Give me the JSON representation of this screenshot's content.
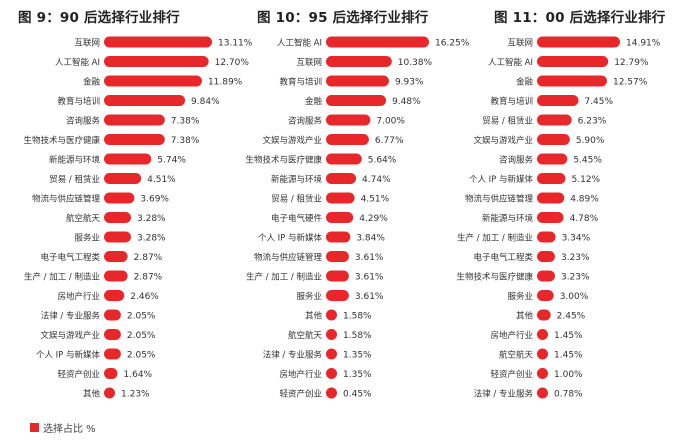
{
  "theme": {
    "bar_color": "#e8272b",
    "title_color": "#222222",
    "text_color": "#333333"
  },
  "legend": {
    "label": "选择占比 %"
  },
  "chart_data": [
    {
      "type": "bar",
      "orientation": "horizontal",
      "title": "图 9：90 后选择行业排行",
      "categories": [
        "互联网",
        "人工智能 AI",
        "金融",
        "教育与培训",
        "咨询服务",
        "生物技术与医疗健康",
        "新能源与环境",
        "贸易 / 租赁业",
        "物流与供应链管理",
        "航空航天",
        "服务业",
        "电子电气工程类",
        "生产 / 加工 / 制造业",
        "房地产行业",
        "法律 / 专业服务",
        "文娱与游戏产业",
        "个人 IP 与新媒体",
        "轻资产创业",
        "其他"
      ],
      "values": [
        13.11,
        12.7,
        11.89,
        9.84,
        7.38,
        7.38,
        5.74,
        4.51,
        3.69,
        3.28,
        3.28,
        2.87,
        2.87,
        2.46,
        2.05,
        2.05,
        2.05,
        1.64,
        1.23
      ],
      "labels": [
        "13.11%",
        "12.70%",
        "11.89%",
        "9.84%",
        "7.38%",
        "7.38%",
        "5.74%",
        "4.51%",
        "3.69%",
        "3.28%",
        "3.28%",
        "2.87%",
        "2.87%",
        "2.46%",
        "2.05%",
        "2.05%",
        "2.05%",
        "1.64%",
        "1.23%"
      ],
      "series_name": "选择占比 %"
    },
    {
      "type": "bar",
      "orientation": "horizontal",
      "title": "图 10：95 后选择行业排行",
      "categories": [
        "人工智能 AI",
        "互联网",
        "教育与培训",
        "金融",
        "咨询服务",
        "文娱与游戏产业",
        "生物技术与医疗健康",
        "新能源与环境",
        "贸易 / 租赁业",
        "电子电气硬件",
        "个人 IP 与新媒体",
        "物流与供应链管理",
        "生产 / 加工 / 制造业",
        "服务业",
        "其他",
        "航空航天",
        "法律 / 专业服务",
        "房地产行业",
        "轻资产创业"
      ],
      "values": [
        16.25,
        10.38,
        9.93,
        9.48,
        7.0,
        6.77,
        5.64,
        4.74,
        4.51,
        4.29,
        3.84,
        3.61,
        3.61,
        3.61,
        1.58,
        1.58,
        1.35,
        1.35,
        0.45
      ],
      "labels": [
        "16.25%",
        "10.38%",
        "9.93%",
        "9.48%",
        "7.00%",
        "6.77%",
        "5.64%",
        "4.74%",
        "4.51%",
        "4.29%",
        "3.84%",
        "3.61%",
        "3.61%",
        "3.61%",
        "1.58%",
        "1.58%",
        "1.35%",
        "1.35%",
        "0.45%"
      ],
      "series_name": "选择占比 %"
    },
    {
      "type": "bar",
      "orientation": "horizontal",
      "title": "图 11：00 后选择行业排行",
      "categories": [
        "互联网",
        "人工智能 AI",
        "金融",
        "教育与培训",
        "贸易 / 租赁业",
        "文娱与游戏产业",
        "咨询服务",
        "个人 IP 与新媒体",
        "物流与供应链管理",
        "新能源与环境",
        "生产 / 加工 / 制造业",
        "电子电气工程类",
        "生物技术与医疗健康",
        "服务业",
        "其他",
        "房地产行业",
        "航空航天",
        "轻资产创业",
        "法律 / 专业服务"
      ],
      "values": [
        14.91,
        12.79,
        12.57,
        7.45,
        6.23,
        5.9,
        5.45,
        5.12,
        4.89,
        4.78,
        3.34,
        3.23,
        3.23,
        3.0,
        2.45,
        1.45,
        1.45,
        1.0,
        0.78
      ],
      "labels": [
        "14.91%",
        "12.79%",
        "12.57%",
        "7.45%",
        "6.23%",
        "5.90%",
        "5.45%",
        "5.12%",
        "4.89%",
        "4.78%",
        "3.34%",
        "3.23%",
        "3.23%",
        "3.00%",
        "2.45%",
        "1.45%",
        "1.45%",
        "1.00%",
        "0.78%"
      ],
      "series_name": "选择占比 %"
    }
  ]
}
